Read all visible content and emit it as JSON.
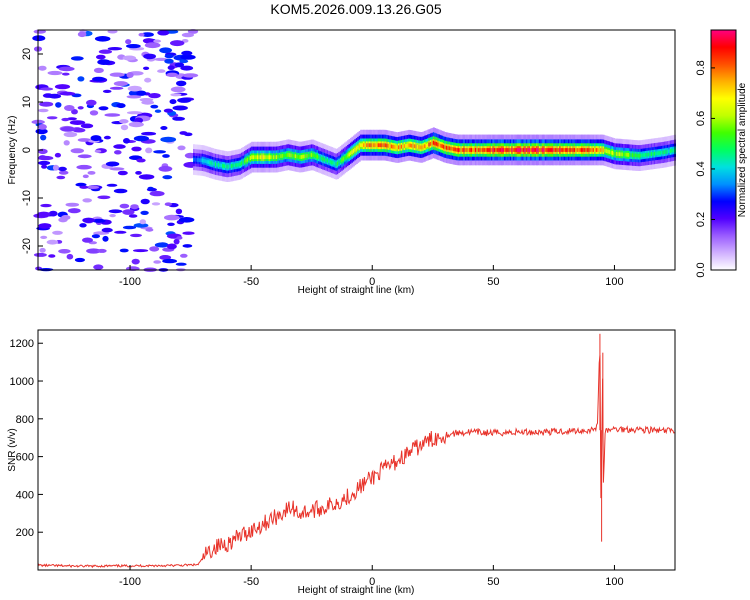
{
  "chart_data": [
    {
      "type": "heatmap",
      "title": "KOM5.2026.009.13.26.G05",
      "xlabel": "Height of straight line (km)",
      "ylabel": "Frequency (Hz)",
      "xlim": [
        -138,
        125
      ],
      "ylim": [
        -25,
        25
      ],
      "xticks": [
        -100,
        -50,
        0,
        50,
        100
      ],
      "yticks": [
        -20,
        -10,
        0,
        10,
        20
      ],
      "colorbar": {
        "label": "Normalized spectral amplitude",
        "range": [
          0,
          0.95
        ],
        "ticks": [
          0.0,
          0.2,
          0.4,
          0.6,
          0.8
        ],
        "colormap": [
          "#ffffff",
          "#d0b0ff",
          "#9a5cff",
          "#5000ff",
          "#0000ff",
          "#0090ff",
          "#00e0e0",
          "#00ff60",
          "#40ff00",
          "#c0ff00",
          "#ffff00",
          "#ffb000",
          "#ff5000",
          "#ff0000",
          "#ff0080"
        ]
      },
      "noise_region": {
        "x": [
          -138,
          -74
        ],
        "level": 0.15
      },
      "ridge": {
        "x": [
          -74,
          -70,
          -65,
          -60,
          -55,
          -50,
          -45,
          -40,
          -35,
          -30,
          -25,
          -20,
          -15,
          -10,
          -5,
          0,
          5,
          10,
          15,
          20,
          25,
          30,
          35,
          40,
          50,
          60,
          70,
          80,
          90,
          95,
          100,
          110,
          120,
          125
        ],
        "freq": [
          -2,
          -2.2,
          -3,
          -3.5,
          -3,
          -1.5,
          -1.5,
          -1.5,
          -1,
          -1.5,
          -1,
          -2,
          -3,
          -1,
          1,
          1,
          1,
          0.5,
          1,
          0.5,
          1.5,
          0.5,
          0,
          0,
          0,
          0,
          0,
          0,
          0,
          0,
          -0.8,
          -1.2,
          -0.5,
          0
        ],
        "amplitude": [
          0.3,
          0.4,
          0.45,
          0.45,
          0.45,
          0.6,
          0.65,
          0.6,
          0.55,
          0.6,
          0.55,
          0.45,
          0.45,
          0.6,
          0.72,
          0.78,
          0.78,
          0.75,
          0.75,
          0.7,
          0.8,
          0.8,
          0.82,
          0.82,
          0.85,
          0.88,
          0.88,
          0.85,
          0.8,
          0.7,
          0.6,
          0.5,
          0.45,
          0.45
        ]
      }
    },
    {
      "type": "line",
      "xlabel": "Height of straight line (km)",
      "ylabel": "SNR (v/v)",
      "xlim": [
        -138,
        125
      ],
      "ylim": [
        0,
        1270
      ],
      "xticks": [
        -100,
        -50,
        0,
        50,
        100
      ],
      "yticks": [
        200,
        400,
        600,
        800,
        1000,
        1200
      ],
      "color": "#e8332a",
      "series": [
        {
          "x": [
            -138,
            -120,
            -100,
            -80,
            -72,
            -68,
            -65,
            -60,
            -55,
            -50,
            -45,
            -40,
            -35,
            -33,
            -30,
            -25,
            -20,
            -15,
            -10,
            -5,
            0,
            5,
            10,
            15,
            20,
            25,
            30,
            35,
            40,
            50,
            60,
            70,
            80,
            90,
            93,
            94,
            94.5,
            95,
            95.5,
            96,
            97,
            100,
            110,
            120,
            125
          ],
          "y": [
            25,
            20,
            22,
            24,
            28,
            90,
            120,
            140,
            175,
            210,
            245,
            280,
            320,
            330,
            300,
            315,
            330,
            355,
            390,
            440,
            490,
            535,
            575,
            620,
            660,
            695,
            715,
            725,
            730,
            725,
            730,
            730,
            735,
            740,
            760,
            1250,
            150,
            1150,
            400,
            720,
            740,
            745,
            745,
            735,
            740
          ]
        }
      ],
      "spikes": [
        {
          "x": 94,
          "y": 1250
        },
        {
          "x": 94.7,
          "y": 150
        },
        {
          "x": 95.2,
          "y": 1150
        }
      ]
    }
  ]
}
